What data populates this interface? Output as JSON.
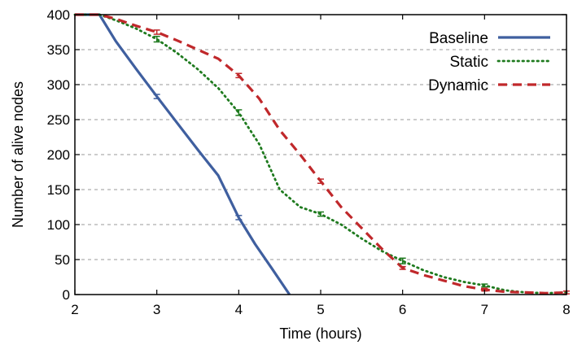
{
  "chart_data": {
    "type": "line",
    "title": "",
    "xlabel": "Time (hours)",
    "ylabel": "Number of alive nodes",
    "xlim": [
      2,
      8
    ],
    "ylim": [
      0,
      400
    ],
    "xticks": [
      "2",
      "3",
      "4",
      "5",
      "6",
      "7",
      "8"
    ],
    "yticks": [
      "0",
      "50",
      "100",
      "150",
      "200",
      "250",
      "300",
      "350",
      "400"
    ],
    "grid": "horizontal dashed",
    "legend_position": "top-right",
    "series": [
      {
        "name": "Baseline",
        "color": "#3f5f9f",
        "style": "solid",
        "x": [
          2.0,
          2.3,
          2.5,
          2.75,
          3.0,
          3.25,
          3.5,
          3.75,
          4.0,
          4.2,
          4.4,
          4.62
        ],
        "y": [
          400,
          400,
          362,
          322,
          283,
          245,
          207,
          170,
          110,
          72,
          38,
          0
        ],
        "errorbars": [
          {
            "x": 3.0,
            "y": 283,
            "err": 3
          },
          {
            "x": 4.0,
            "y": 110,
            "err": 3
          }
        ]
      },
      {
        "name": "Static",
        "color": "#1e7a1e",
        "style": "dotted",
        "x": [
          2.0,
          2.3,
          2.5,
          2.75,
          3.0,
          3.25,
          3.5,
          3.75,
          4.0,
          4.25,
          4.5,
          4.75,
          5.0,
          5.25,
          5.5,
          5.75,
          6.0,
          6.25,
          6.5,
          6.75,
          7.0,
          7.25,
          7.5,
          7.75,
          8.0
        ],
        "y": [
          400,
          400,
          392,
          380,
          365,
          345,
          322,
          295,
          260,
          215,
          150,
          125,
          115,
          100,
          80,
          62,
          48,
          35,
          25,
          18,
          13,
          6,
          3,
          2,
          3
        ],
        "errorbars": [
          {
            "x": 3.0,
            "y": 365,
            "err": 4
          },
          {
            "x": 4.0,
            "y": 260,
            "err": 4
          },
          {
            "x": 5.0,
            "y": 115,
            "err": 3
          },
          {
            "x": 6.0,
            "y": 48,
            "err": 4
          },
          {
            "x": 7.0,
            "y": 13,
            "err": 2
          }
        ]
      },
      {
        "name": "Dynamic",
        "color": "#c0282b",
        "style": "dashed",
        "x": [
          2.0,
          2.3,
          2.5,
          2.75,
          3.0,
          3.25,
          3.5,
          3.75,
          4.0,
          4.25,
          4.5,
          4.75,
          5.0,
          5.25,
          5.5,
          5.75,
          6.0,
          6.25,
          6.5,
          6.75,
          7.0,
          7.25,
          7.5,
          7.75,
          8.0
        ],
        "y": [
          400,
          400,
          394,
          384,
          375,
          363,
          350,
          337,
          313,
          280,
          235,
          200,
          162,
          125,
          95,
          65,
          38,
          28,
          20,
          12,
          7,
          4,
          3,
          2,
          3
        ],
        "errorbars": [
          {
            "x": 3.0,
            "y": 375,
            "err": 3
          },
          {
            "x": 4.0,
            "y": 313,
            "err": 3
          },
          {
            "x": 5.0,
            "y": 162,
            "err": 3
          },
          {
            "x": 6.0,
            "y": 38,
            "err": 2
          },
          {
            "x": 7.0,
            "y": 7,
            "err": 2
          },
          {
            "x": 8.0,
            "y": 3,
            "err": 2
          }
        ]
      }
    ]
  }
}
